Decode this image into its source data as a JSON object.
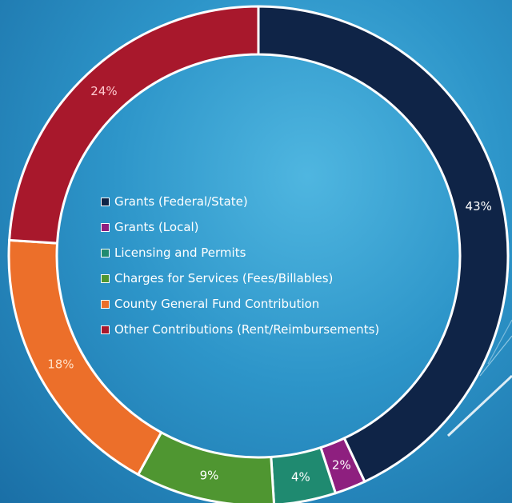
{
  "chart_data": {
    "type": "pie",
    "title": "",
    "categories": [
      "Grants (Federal/State)",
      "Grants (Local)",
      "Licensing and Permits",
      "Charges for Services (Fees/Billables)",
      "County General Fund Contribution",
      "Other Contributions (Rent/Reimbursements)"
    ],
    "values": [
      43,
      2,
      4,
      9,
      18,
      24
    ],
    "labels": [
      "43%",
      "2%",
      "4%",
      "9%",
      "18%",
      "24%"
    ],
    "colors": [
      "#0f2447",
      "#8e1f7f",
      "#1f8a70",
      "#4f9631",
      "#ec6f2a",
      "#a8182c"
    ],
    "label_colors": [
      "#ffffff",
      "#ffffff",
      "#ffffff",
      "#ffffff",
      "#ffe1c8",
      "#ffc9cf"
    ],
    "start_angle_deg": 0,
    "donut": true,
    "legend": "center"
  }
}
